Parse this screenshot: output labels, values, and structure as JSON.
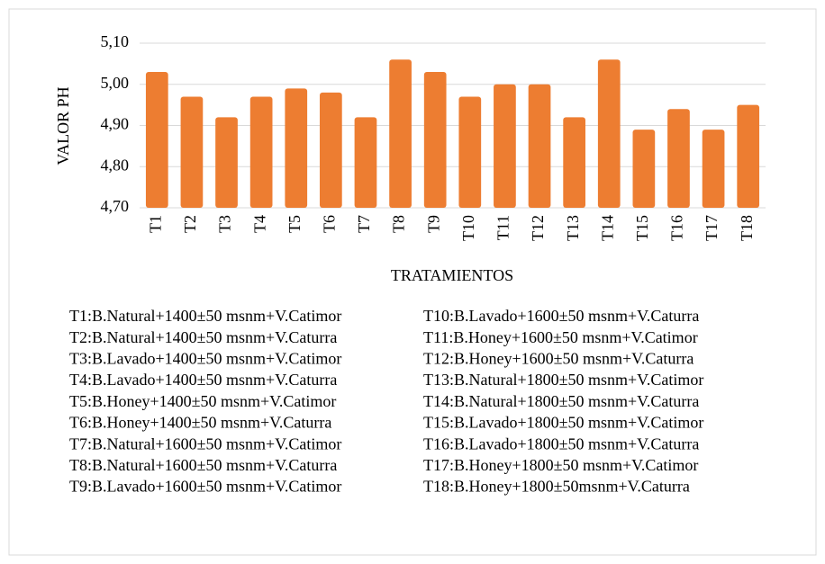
{
  "chart_data": {
    "type": "bar",
    "y_label": "VALOR PH",
    "x_label": "TRATAMIENTOS",
    "categories": [
      "T1",
      "T2",
      "T3",
      "T4",
      "T5",
      "T6",
      "T7",
      "T8",
      "T9",
      "T10",
      "T11",
      "T12",
      "T13",
      "T14",
      "T15",
      "T16",
      "T17",
      "T18"
    ],
    "values": [
      5.03,
      4.97,
      4.92,
      4.97,
      4.99,
      4.98,
      4.92,
      5.06,
      5.03,
      4.97,
      5.0,
      5.0,
      4.92,
      5.06,
      4.89,
      4.94,
      4.89,
      4.95
    ],
    "color": "#ed7d31",
    "ylim": [
      4.7,
      5.1
    ],
    "yticks": [
      {
        "value": 4.7,
        "label": "4,70"
      },
      {
        "value": 4.8,
        "label": "4,80"
      },
      {
        "value": 4.9,
        "label": "4,90"
      },
      {
        "value": 5.0,
        "label": "5,00"
      },
      {
        "value": 5.1,
        "label": "5,10"
      }
    ],
    "grid": true,
    "notes": [
      "T1:B.Natural+1400±50 msnm+V.Catimor",
      "T2:B.Natural+1400±50 msnm+V.Caturra",
      "T3:B.Lavado+1400±50 msnm+V.Catimor",
      "T4:B.Lavado+1400±50 msnm+V.Caturra",
      "T5:B.Honey+1400±50 msnm+V.Catimor",
      "T6:B.Honey+1400±50 msnm+V.Caturra",
      "T7:B.Natural+1600±50 msnm+V.Catimor",
      "T8:B.Natural+1600±50 msnm+V.Caturra",
      "T9:B.Lavado+1600±50 msnm+V.Catimor",
      "T10:B.Lavado+1600±50 msnm+V.Caturra",
      "T11:B.Honey+1600±50 msnm+V.Catimor",
      "T12:B.Honey+1600±50 msnm+V.Caturra",
      "T13:B.Natural+1800±50 msnm+V.Catimor",
      "T14:B.Natural+1800±50 msnm+V.Caturra",
      "T15:B.Lavado+1800±50 msnm+V.Catimor",
      "T16:B.Lavado+1800±50 msnm+V.Caturra",
      "T17:B.Honey+1800±50 msnm+V.Catimor",
      "T18:B.Honey+1800±50msnm+V.Caturra"
    ]
  }
}
